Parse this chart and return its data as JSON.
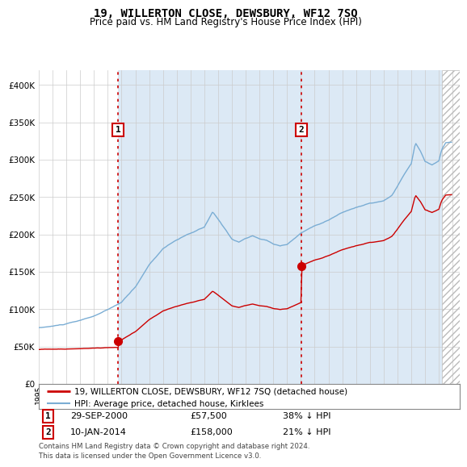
{
  "title": "19, WILLERTON CLOSE, DEWSBURY, WF12 7SQ",
  "subtitle": "Price paid vs. HM Land Registry's House Price Index (HPI)",
  "legend_line1": "19, WILLERTON CLOSE, DEWSBURY, WF12 7SQ (detached house)",
  "legend_line2": "HPI: Average price, detached house, Kirklees",
  "annotation1": {
    "label": "1",
    "date": "29-SEP-2000",
    "price": 57500,
    "note": "38% ↓ HPI"
  },
  "annotation2": {
    "label": "2",
    "date": "10-JAN-2014",
    "price": 158000,
    "note": "21% ↓ HPI"
  },
  "footer": "Contains HM Land Registry data © Crown copyright and database right 2024.\nThis data is licensed under the Open Government Licence v3.0.",
  "sale1_x": 2000.75,
  "sale2_x": 2014.03,
  "sale1_y": 57500,
  "sale2_y": 158000,
  "red_line_color": "#cc0000",
  "blue_line_color": "#7aadd4",
  "background_color": "#dce9f5",
  "ylim": [
    0,
    420000
  ],
  "xlim_start": 1995.0,
  "xlim_end": 2025.5,
  "yticks": [
    0,
    50000,
    100000,
    150000,
    200000,
    250000,
    300000,
    350000,
    400000
  ],
  "hatch_start": 2024.25
}
